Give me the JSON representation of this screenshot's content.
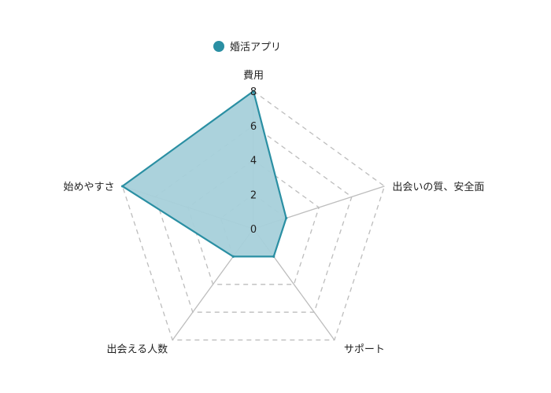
{
  "chart_data": {
    "type": "radar",
    "axes": [
      "費用",
      "出会いの質、安全面",
      "サポート",
      "出会える人数",
      "始めやすさ"
    ],
    "series": [
      {
        "name": "婚活アプリ",
        "values": [
          8,
          2,
          2,
          2,
          8
        ]
      }
    ],
    "rlim": [
      0,
      8
    ],
    "ticks": [
      0,
      2,
      4,
      6,
      8
    ],
    "grid": true,
    "legend": "top-center",
    "colors": {
      "line": "#2a8fa3",
      "fill": "#a6d0da",
      "grid": "#bdbdbd"
    }
  }
}
